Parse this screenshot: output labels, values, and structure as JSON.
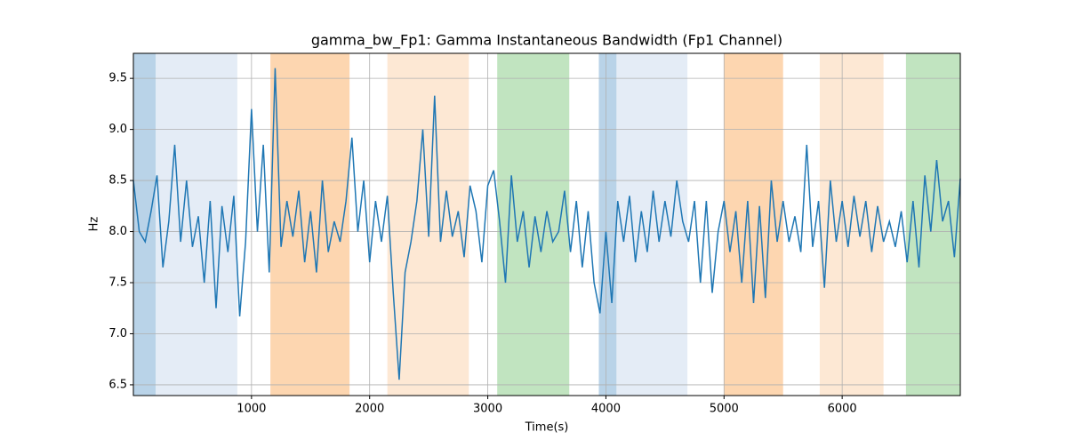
{
  "chart_data": {
    "type": "line",
    "title": "gamma_bw_Fp1: Gamma Instantaneous Bandwidth (Fp1 Channel)",
    "xlabel": "Time(s)",
    "ylabel": "Hz",
    "xlim": [
      0,
      7000
    ],
    "ylim": [
      6.395,
      9.745
    ],
    "xticks": [
      1000,
      2000,
      3000,
      4000,
      5000,
      6000
    ],
    "yticks": [
      6.5,
      {
        "value": 7,
        "label": "7.0"
      },
      7.5,
      {
        "value": 8,
        "label": "8.0"
      },
      8.5,
      {
        "value": 9,
        "label": "9.0"
      },
      9.5
    ],
    "grid": true,
    "spans": [
      {
        "start": 0,
        "end": 190,
        "color": "#b9d3e8"
      },
      {
        "start": 190,
        "end": 880,
        "color": "#e4ecf6"
      },
      {
        "start": 1160,
        "end": 1830,
        "color": "#fdd6b0"
      },
      {
        "start": 2150,
        "end": 2840,
        "color": "#fde8d4"
      },
      {
        "start": 3080,
        "end": 3690,
        "color": "#c1e4c0"
      },
      {
        "start": 3940,
        "end": 4090,
        "color": "#b9d3e8"
      },
      {
        "start": 4090,
        "end": 4690,
        "color": "#e4ecf6"
      },
      {
        "start": 5000,
        "end": 5500,
        "color": "#fdd6b0"
      },
      {
        "start": 5810,
        "end": 6350,
        "color": "#fde8d4"
      },
      {
        "start": 6540,
        "end": 7000,
        "color": "#c1e4c0"
      }
    ],
    "x": [
      0,
      50,
      100,
      150,
      200,
      250,
      300,
      350,
      400,
      450,
      500,
      550,
      600,
      650,
      700,
      750,
      800,
      850,
      900,
      950,
      1000,
      1050,
      1100,
      1150,
      1200,
      1250,
      1300,
      1350,
      1400,
      1450,
      1500,
      1550,
      1600,
      1650,
      1700,
      1750,
      1800,
      1850,
      1900,
      1950,
      2000,
      2050,
      2100,
      2150,
      2200,
      2250,
      2300,
      2350,
      2400,
      2450,
      2500,
      2550,
      2600,
      2650,
      2700,
      2750,
      2800,
      2850,
      2900,
      2950,
      3000,
      3050,
      3100,
      3150,
      3200,
      3250,
      3300,
      3350,
      3400,
      3450,
      3500,
      3550,
      3600,
      3650,
      3700,
      3750,
      3800,
      3850,
      3900,
      3950,
      4000,
      4050,
      4100,
      4150,
      4200,
      4250,
      4300,
      4350,
      4400,
      4450,
      4500,
      4550,
      4600,
      4650,
      4700,
      4750,
      4800,
      4850,
      4900,
      4950,
      5000,
      5050,
      5100,
      5150,
      5200,
      5250,
      5300,
      5350,
      5400,
      5450,
      5500,
      5550,
      5600,
      5650,
      5700,
      5750,
      5800,
      5850,
      5900,
      5950,
      6000,
      6050,
      6100,
      6150,
      6200,
      6250,
      6300,
      6350,
      6400,
      6450,
      6500,
      6550,
      6600,
      6650,
      6700,
      6750,
      6800,
      6850,
      6900,
      6950,
      7000
    ],
    "series": [
      {
        "color": "#1f77b4",
        "values": [
          8.5,
          8.0,
          7.9,
          8.2,
          8.55,
          7.65,
          8.1,
          8.85,
          7.9,
          8.5,
          7.85,
          8.15,
          7.5,
          8.3,
          7.25,
          8.25,
          7.8,
          8.35,
          7.17,
          7.9,
          9.2,
          8.0,
          8.85,
          7.6,
          9.6,
          7.85,
          8.3,
          7.95,
          8.4,
          7.7,
          8.2,
          7.6,
          8.5,
          7.8,
          8.1,
          7.9,
          8.3,
          8.92,
          8.0,
          8.5,
          7.7,
          8.3,
          7.9,
          8.35,
          7.4,
          6.55,
          7.6,
          7.9,
          8.3,
          9.0,
          7.95,
          9.33,
          7.9,
          8.4,
          7.95,
          8.2,
          7.75,
          8.45,
          8.2,
          7.7,
          8.45,
          8.6,
          8.1,
          7.5,
          8.55,
          7.9,
          8.2,
          7.65,
          8.15,
          7.8,
          8.2,
          7.9,
          8.0,
          8.4,
          7.8,
          8.3,
          7.65,
          8.2,
          7.5,
          7.2,
          8.0,
          7.3,
          8.3,
          7.9,
          8.35,
          7.7,
          8.2,
          7.8,
          8.4,
          7.9,
          8.3,
          7.95,
          8.5,
          8.1,
          7.9,
          8.3,
          7.5,
          8.3,
          7.4,
          8.0,
          8.3,
          7.8,
          8.2,
          7.5,
          8.3,
          7.3,
          8.25,
          7.35,
          8.5,
          7.9,
          8.3,
          7.9,
          8.15,
          7.8,
          8.85,
          7.85,
          8.3,
          7.45,
          8.5,
          7.9,
          8.3,
          7.85,
          8.35,
          7.95,
          8.3,
          7.8,
          8.25,
          7.9,
          8.1,
          7.85,
          8.2,
          7.7,
          8.3,
          7.65,
          8.55,
          8.0,
          8.7,
          8.1,
          8.3,
          7.75,
          8.52
        ]
      }
    ]
  }
}
